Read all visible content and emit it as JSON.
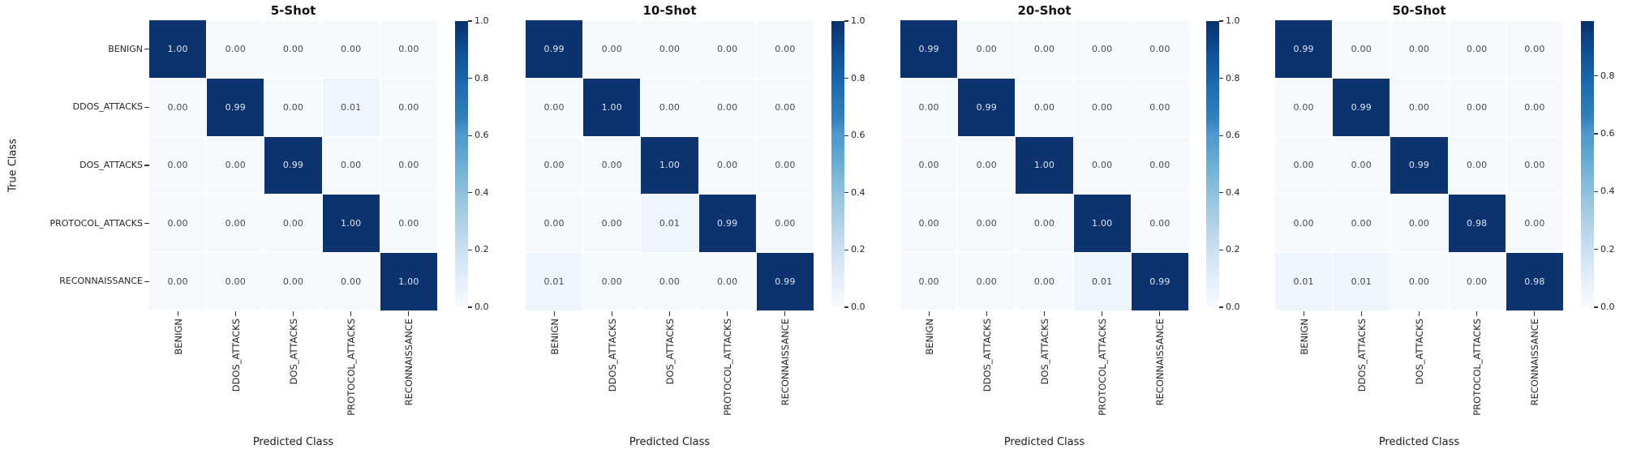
{
  "figure": {
    "xlabel": "Predicted Class",
    "ylabel": "True Class",
    "colors": {
      "cell_high": "#0c336d",
      "cell_low": "#f6fafe",
      "cell_low_tint": "#eef5fc",
      "text_on_dark": "#dde4f0",
      "text_on_light": "#4a4a4a",
      "colormap_top": "#08306b",
      "colormap_bottom": "#f7fbff",
      "tick_color": "#333333"
    }
  },
  "chart_data": [
    {
      "type": "heatmap",
      "title": "5-Shot",
      "x_categories": [
        "BENIGN",
        "DDOS_ATTACKS",
        "DOS_ATTACKS",
        "PROTOCOL_ATTACKS",
        "RECONNAISSANCE"
      ],
      "y_categories": [
        "BENIGN",
        "DDOS_ATTACKS",
        "DOS_ATTACKS",
        "PROTOCOL_ATTACKS",
        "RECONNAISSANCE"
      ],
      "values": [
        [
          1.0,
          0.0,
          0.0,
          0.0,
          0.0
        ],
        [
          0.0,
          0.99,
          0.0,
          0.01,
          0.0
        ],
        [
          0.0,
          0.0,
          0.99,
          0.0,
          0.0
        ],
        [
          0.0,
          0.0,
          0.0,
          1.0,
          0.0
        ],
        [
          0.0,
          0.0,
          0.0,
          0.0,
          1.0
        ]
      ],
      "vmin": 0.0,
      "vmax": 1.0,
      "colorbar_ticks": [
        "1.0",
        "0.8",
        "0.6",
        "0.4",
        "0.2",
        "0.0"
      ],
      "show_y_tick_labels": true
    },
    {
      "type": "heatmap",
      "title": "10-Shot",
      "x_categories": [
        "BENIGN",
        "DDOS_ATTACKS",
        "DOS_ATTACKS",
        "PROTOCOL_ATTACKS",
        "RECONNAISSANCE"
      ],
      "y_categories": [
        "BENIGN",
        "DDOS_ATTACKS",
        "DOS_ATTACKS",
        "PROTOCOL_ATTACKS",
        "RECONNAISSANCE"
      ],
      "values": [
        [
          0.99,
          0.0,
          0.0,
          0.0,
          0.0
        ],
        [
          0.0,
          1.0,
          0.0,
          0.0,
          0.0
        ],
        [
          0.0,
          0.0,
          1.0,
          0.0,
          0.0
        ],
        [
          0.0,
          0.0,
          0.01,
          0.99,
          0.0
        ],
        [
          0.01,
          0.0,
          0.0,
          0.0,
          0.99
        ]
      ],
      "vmin": 0.0,
      "vmax": 1.0,
      "colorbar_ticks": [
        "1.0",
        "0.8",
        "0.6",
        "0.4",
        "0.2",
        "0.0"
      ],
      "show_y_tick_labels": false
    },
    {
      "type": "heatmap",
      "title": "20-Shot",
      "x_categories": [
        "BENIGN",
        "DDOS_ATTACKS",
        "DOS_ATTACKS",
        "PROTOCOL_ATTACKS",
        "RECONNAISSANCE"
      ],
      "y_categories": [
        "BENIGN",
        "DDOS_ATTACKS",
        "DOS_ATTACKS",
        "PROTOCOL_ATTACKS",
        "RECONNAISSANCE"
      ],
      "values": [
        [
          0.99,
          0.0,
          0.0,
          0.0,
          0.0
        ],
        [
          0.0,
          0.99,
          0.0,
          0.0,
          0.0
        ],
        [
          0.0,
          0.0,
          1.0,
          0.0,
          0.0
        ],
        [
          0.0,
          0.0,
          0.0,
          1.0,
          0.0
        ],
        [
          0.0,
          0.0,
          0.0,
          0.01,
          0.99
        ]
      ],
      "vmin": 0.0,
      "vmax": 1.0,
      "colorbar_ticks": [
        "1.0",
        "0.8",
        "0.6",
        "0.4",
        "0.2",
        "0.0"
      ],
      "show_y_tick_labels": false
    },
    {
      "type": "heatmap",
      "title": "50-Shot",
      "x_categories": [
        "BENIGN",
        "DDOS_ATTACKS",
        "DOS_ATTACKS",
        "PROTOCOL_ATTACKS",
        "RECONNAISSANCE"
      ],
      "y_categories": [
        "BENIGN",
        "DDOS_ATTACKS",
        "DOS_ATTACKS",
        "PROTOCOL_ATTACKS",
        "RECONNAISSANCE"
      ],
      "values": [
        [
          0.99,
          0.0,
          0.0,
          0.0,
          0.0
        ],
        [
          0.0,
          0.99,
          0.0,
          0.0,
          0.0
        ],
        [
          0.0,
          0.0,
          0.99,
          0.0,
          0.0
        ],
        [
          0.0,
          0.0,
          0.0,
          0.98,
          0.0
        ],
        [
          0.01,
          0.01,
          0.0,
          0.0,
          0.98
        ]
      ],
      "vmin": 0.0,
      "vmax": 0.99,
      "colorbar_ticks": [
        "0.8",
        "0.6",
        "0.4",
        "0.2",
        "0.0"
      ],
      "show_y_tick_labels": false
    }
  ]
}
